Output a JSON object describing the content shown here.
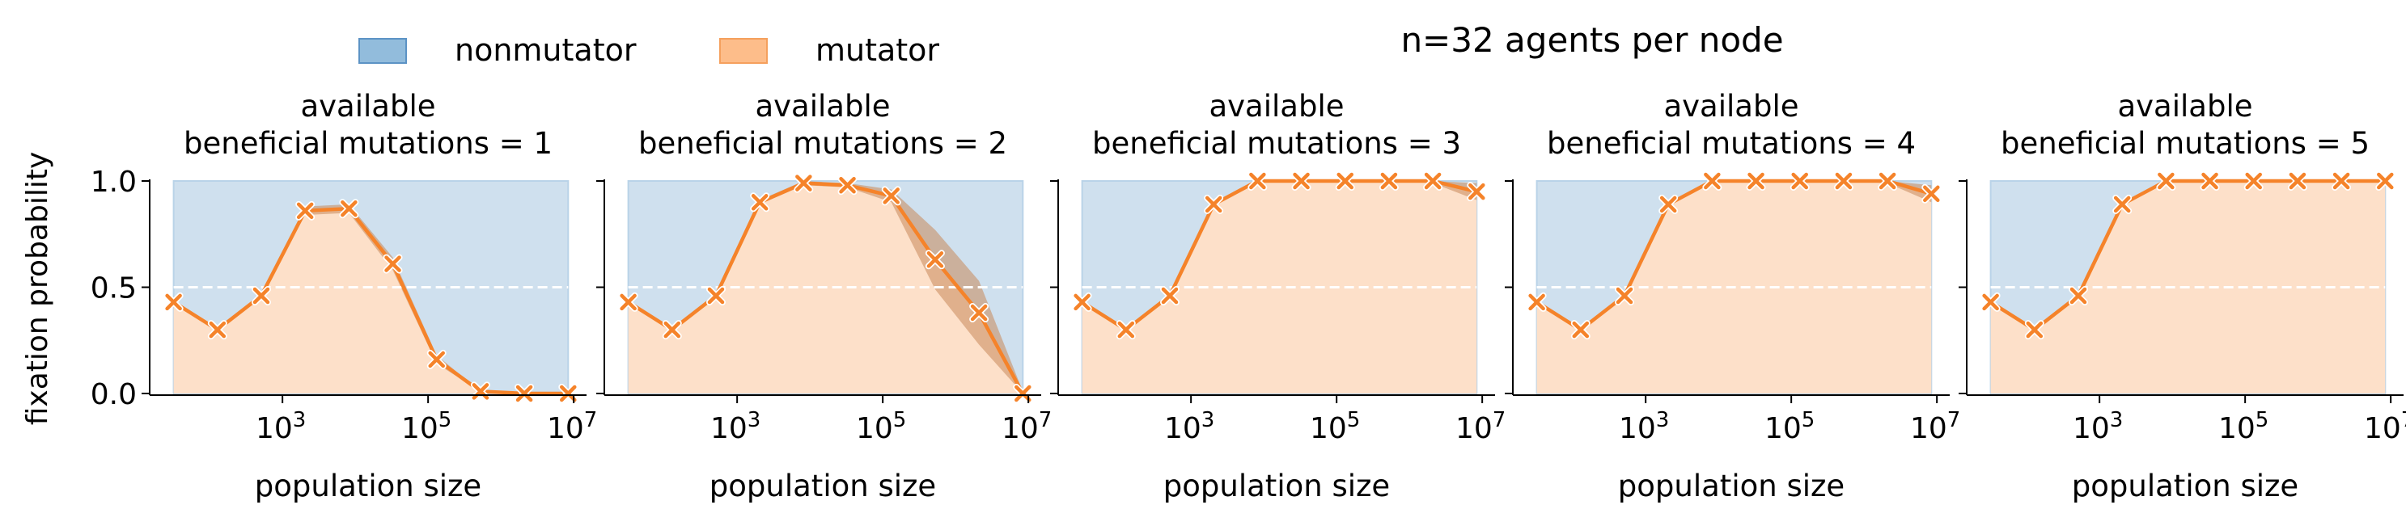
{
  "figure_title": "n=32 agents per node",
  "legend": {
    "placement": "top-left",
    "items": [
      {
        "label": "nonmutator",
        "color": "#92bcdc"
      },
      {
        "label": "mutator",
        "color": "#fdbd8a"
      }
    ]
  },
  "colors": {
    "nonmutator_fill": "#cfe0ee",
    "mutator_fill": "#fde0c9",
    "line": "#f5832a",
    "ci_band": "#c9895a",
    "dashed_line": "#ffffff"
  },
  "chart_data": [
    {
      "type": "line",
      "title_line1": "available",
      "title_line2": "beneficial mutations = 1",
      "xlabel": "population size",
      "ylabel": "fixation probability",
      "xscale": "log",
      "xlim": [
        15,
        15000000
      ],
      "ylim": [
        0,
        1
      ],
      "yticks": [
        "0.0",
        "0.5",
        "1.0"
      ],
      "xticks": [
        {
          "base": "10",
          "exp": "3"
        },
        {
          "base": "10",
          "exp": "5"
        },
        {
          "base": "10",
          "exp": "7"
        }
      ],
      "x": [
        32,
        128,
        512,
        2048,
        8192,
        32768,
        131072,
        524288,
        2097152,
        8388608
      ],
      "series": [
        {
          "values": [
            0.43,
            0.3,
            0.46,
            0.86,
            0.87,
            0.61,
            0.16,
            0.01,
            0.0,
            0.0
          ]
        }
      ],
      "ci_halfwidth": [
        0,
        0,
        0,
        0.02,
        0.02,
        0.03,
        0.02,
        0,
        0,
        0
      ],
      "reference_line": 0.5
    },
    {
      "type": "line",
      "title_line1": "available",
      "title_line2": "beneficial mutations = 2",
      "xlabel": "population size",
      "xscale": "log",
      "xlim": [
        15,
        15000000
      ],
      "ylim": [
        0,
        1
      ],
      "xticks": [
        {
          "base": "10",
          "exp": "3"
        },
        {
          "base": "10",
          "exp": "5"
        },
        {
          "base": "10",
          "exp": "7"
        }
      ],
      "x": [
        32,
        128,
        512,
        2048,
        8192,
        32768,
        131072,
        524288,
        2097152,
        8388608
      ],
      "series": [
        {
          "values": [
            0.43,
            0.3,
            0.46,
            0.9,
            0.99,
            0.98,
            0.93,
            0.63,
            0.38,
            0.0
          ]
        }
      ],
      "ci_halfwidth": [
        0,
        0,
        0,
        0.01,
        0.01,
        0.01,
        0.03,
        0.14,
        0.15,
        0.01
      ],
      "reference_line": 0.5
    },
    {
      "type": "line",
      "title_line1": "available",
      "title_line2": "beneficial mutations = 3",
      "xlabel": "population size",
      "xscale": "log",
      "xlim": [
        15,
        15000000
      ],
      "ylim": [
        0,
        1
      ],
      "xticks": [
        {
          "base": "10",
          "exp": "3"
        },
        {
          "base": "10",
          "exp": "5"
        },
        {
          "base": "10",
          "exp": "7"
        }
      ],
      "x": [
        32,
        128,
        512,
        2048,
        8192,
        32768,
        131072,
        524288,
        2097152,
        8388608
      ],
      "series": [
        {
          "values": [
            0.43,
            0.3,
            0.46,
            0.89,
            1.0,
            1.0,
            1.0,
            1.0,
            1.0,
            0.95
          ]
        }
      ],
      "ci_halfwidth": [
        0,
        0,
        0,
        0.01,
        0,
        0,
        0,
        0,
        0.01,
        0.04
      ],
      "reference_line": 0.5
    },
    {
      "type": "line",
      "title_line1": "available",
      "title_line2": "beneficial mutations = 4",
      "xlabel": "population size",
      "xscale": "log",
      "xlim": [
        15,
        15000000
      ],
      "ylim": [
        0,
        1
      ],
      "xticks": [
        {
          "base": "10",
          "exp": "3"
        },
        {
          "base": "10",
          "exp": "5"
        },
        {
          "base": "10",
          "exp": "7"
        }
      ],
      "x": [
        32,
        128,
        512,
        2048,
        8192,
        32768,
        131072,
        524288,
        2097152,
        8388608
      ],
      "series": [
        {
          "values": [
            0.43,
            0.3,
            0.46,
            0.89,
            1.0,
            1.0,
            1.0,
            1.0,
            1.0,
            0.94
          ]
        }
      ],
      "ci_halfwidth": [
        0,
        0,
        0,
        0.01,
        0,
        0,
        0,
        0,
        0.01,
        0.04
      ],
      "reference_line": 0.5
    },
    {
      "type": "line",
      "title_line1": "available",
      "title_line2": "beneficial mutations = 5",
      "xlabel": "population size",
      "xscale": "log",
      "xlim": [
        15,
        15000000
      ],
      "ylim": [
        0,
        1
      ],
      "xticks": [
        {
          "base": "10",
          "exp": "3"
        },
        {
          "base": "10",
          "exp": "5"
        },
        {
          "base": "10",
          "exp": "7"
        }
      ],
      "x": [
        32,
        128,
        512,
        2048,
        8192,
        32768,
        131072,
        524288,
        2097152,
        8388608
      ],
      "series": [
        {
          "values": [
            0.43,
            0.3,
            0.46,
            0.89,
            1.0,
            1.0,
            1.0,
            1.0,
            1.0,
            1.0
          ]
        }
      ],
      "ci_halfwidth": [
        0,
        0,
        0,
        0.01,
        0,
        0,
        0,
        0,
        0,
        0
      ],
      "reference_line": 0.5
    }
  ]
}
